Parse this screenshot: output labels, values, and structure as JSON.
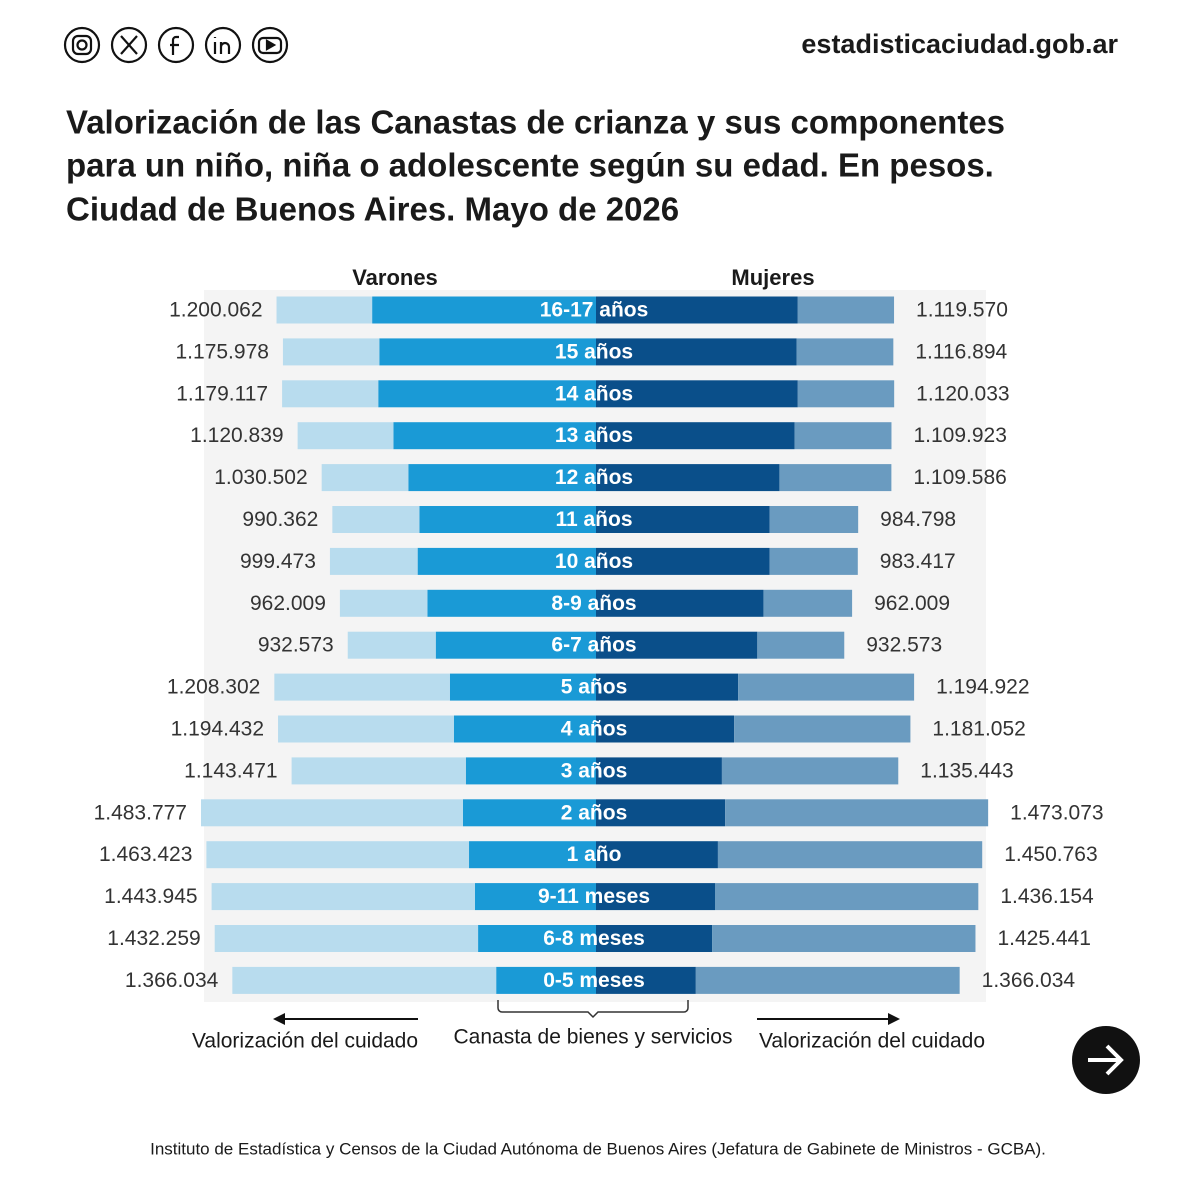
{
  "header": {
    "site": "estadisticaciudad.gob.ar"
  },
  "footer": "Instituto de Estadística y Censos de la Ciudad Autónoma de Buenos Aires (Jefatura de Gabinete de Ministros - GCBA).",
  "chart_data": {
    "type": "butterfly",
    "title": [
      "Valorización de las Canastas de crianza y sus componentes",
      "para un niño, niña o adolescente según su edad. En pesos.",
      "Ciudad de Buenos Aires. Mayo de 2026"
    ],
    "categories": [
      "16-17 años",
      "15 años",
      "14 años",
      "13 años",
      "12 años",
      "11 años",
      "10 años",
      "8-9 años",
      "6-7 años",
      "5 años",
      "4 años",
      "3 años",
      "2 años",
      "1 año",
      "9-11 meses",
      "6-8 meses",
      "0-5 meses"
    ],
    "left": {
      "name": "Varones",
      "series": [
        {
          "name": "Canasta de bienes y servicios",
          "color": "#1a9ad6",
          "values": [
            841000,
            814000,
            818000,
            761000,
            705000,
            663000,
            670000,
            633000,
            602000,
            549000,
            534000,
            489000,
            500000,
            477000,
            455000,
            443000,
            375000
          ]
        },
        {
          "name": "Valorización del cuidado",
          "color": "#b8dcee",
          "values": [
            359062,
            361978,
            361117,
            359839,
            325502,
            327362,
            329473,
            329009,
            330573,
            659302,
            660432,
            654471,
            983777,
            986423,
            988945,
            989259,
            991034
          ]
        }
      ],
      "totals": [
        1200062,
        1175978,
        1179117,
        1120839,
        1030502,
        990362,
        999473,
        962009,
        932573,
        1208302,
        1194432,
        1143471,
        1483777,
        1463423,
        1443945,
        1432259,
        1366034
      ],
      "total_labels": [
        "1.200.062",
        "1.175.978",
        "1.179.117",
        "1.120.839",
        "1.030.502",
        "990.362",
        "999.473",
        "962.009",
        "932.573",
        "1.208.302",
        "1.194.432",
        "1.143.471",
        "1.483.777",
        "1.463.423",
        "1.443.945",
        "1.432.259",
        "1.366.034"
      ]
    },
    "right": {
      "name": "Mujeres",
      "series": [
        {
          "color": "#0a4f8a",
          "values": [
            758000,
            754000,
            758000,
            746000,
            689000,
            652000,
            652000,
            629000,
            606000,
            534000,
            519000,
            473000,
            485000,
            458000,
            447000,
            436000,
            375000
          ]
        },
        {
          "name": "Valorización del cuidado",
          "color": "#6a9bc0",
          "values": [
            361570,
            362894,
            362033,
            363923,
            420586,
            332798,
            331417,
            333009,
            326573,
            660922,
            662052,
            662443,
            988073,
            992763,
            989154,
            989441,
            991034
          ]
        }
      ],
      "totals": [
        1119570,
        1116894,
        1120033,
        1109923,
        1109586,
        984798,
        983417,
        962009,
        932573,
        1194922,
        1181052,
        1135443,
        1473073,
        1450763,
        1436154,
        1425441,
        1366034
      ],
      "total_labels": [
        "1.119.570",
        "1.116.894",
        "1.120.033",
        "1.109.923",
        "1.109.586",
        "984.798",
        "983.417",
        "962.009",
        "932.573",
        "1.194.922",
        "1.181.052",
        "1.135.443",
        "1.473.073",
        "1.450.763",
        "1.436.154",
        "1.425.441",
        "1.366.034"
      ]
    }
  }
}
